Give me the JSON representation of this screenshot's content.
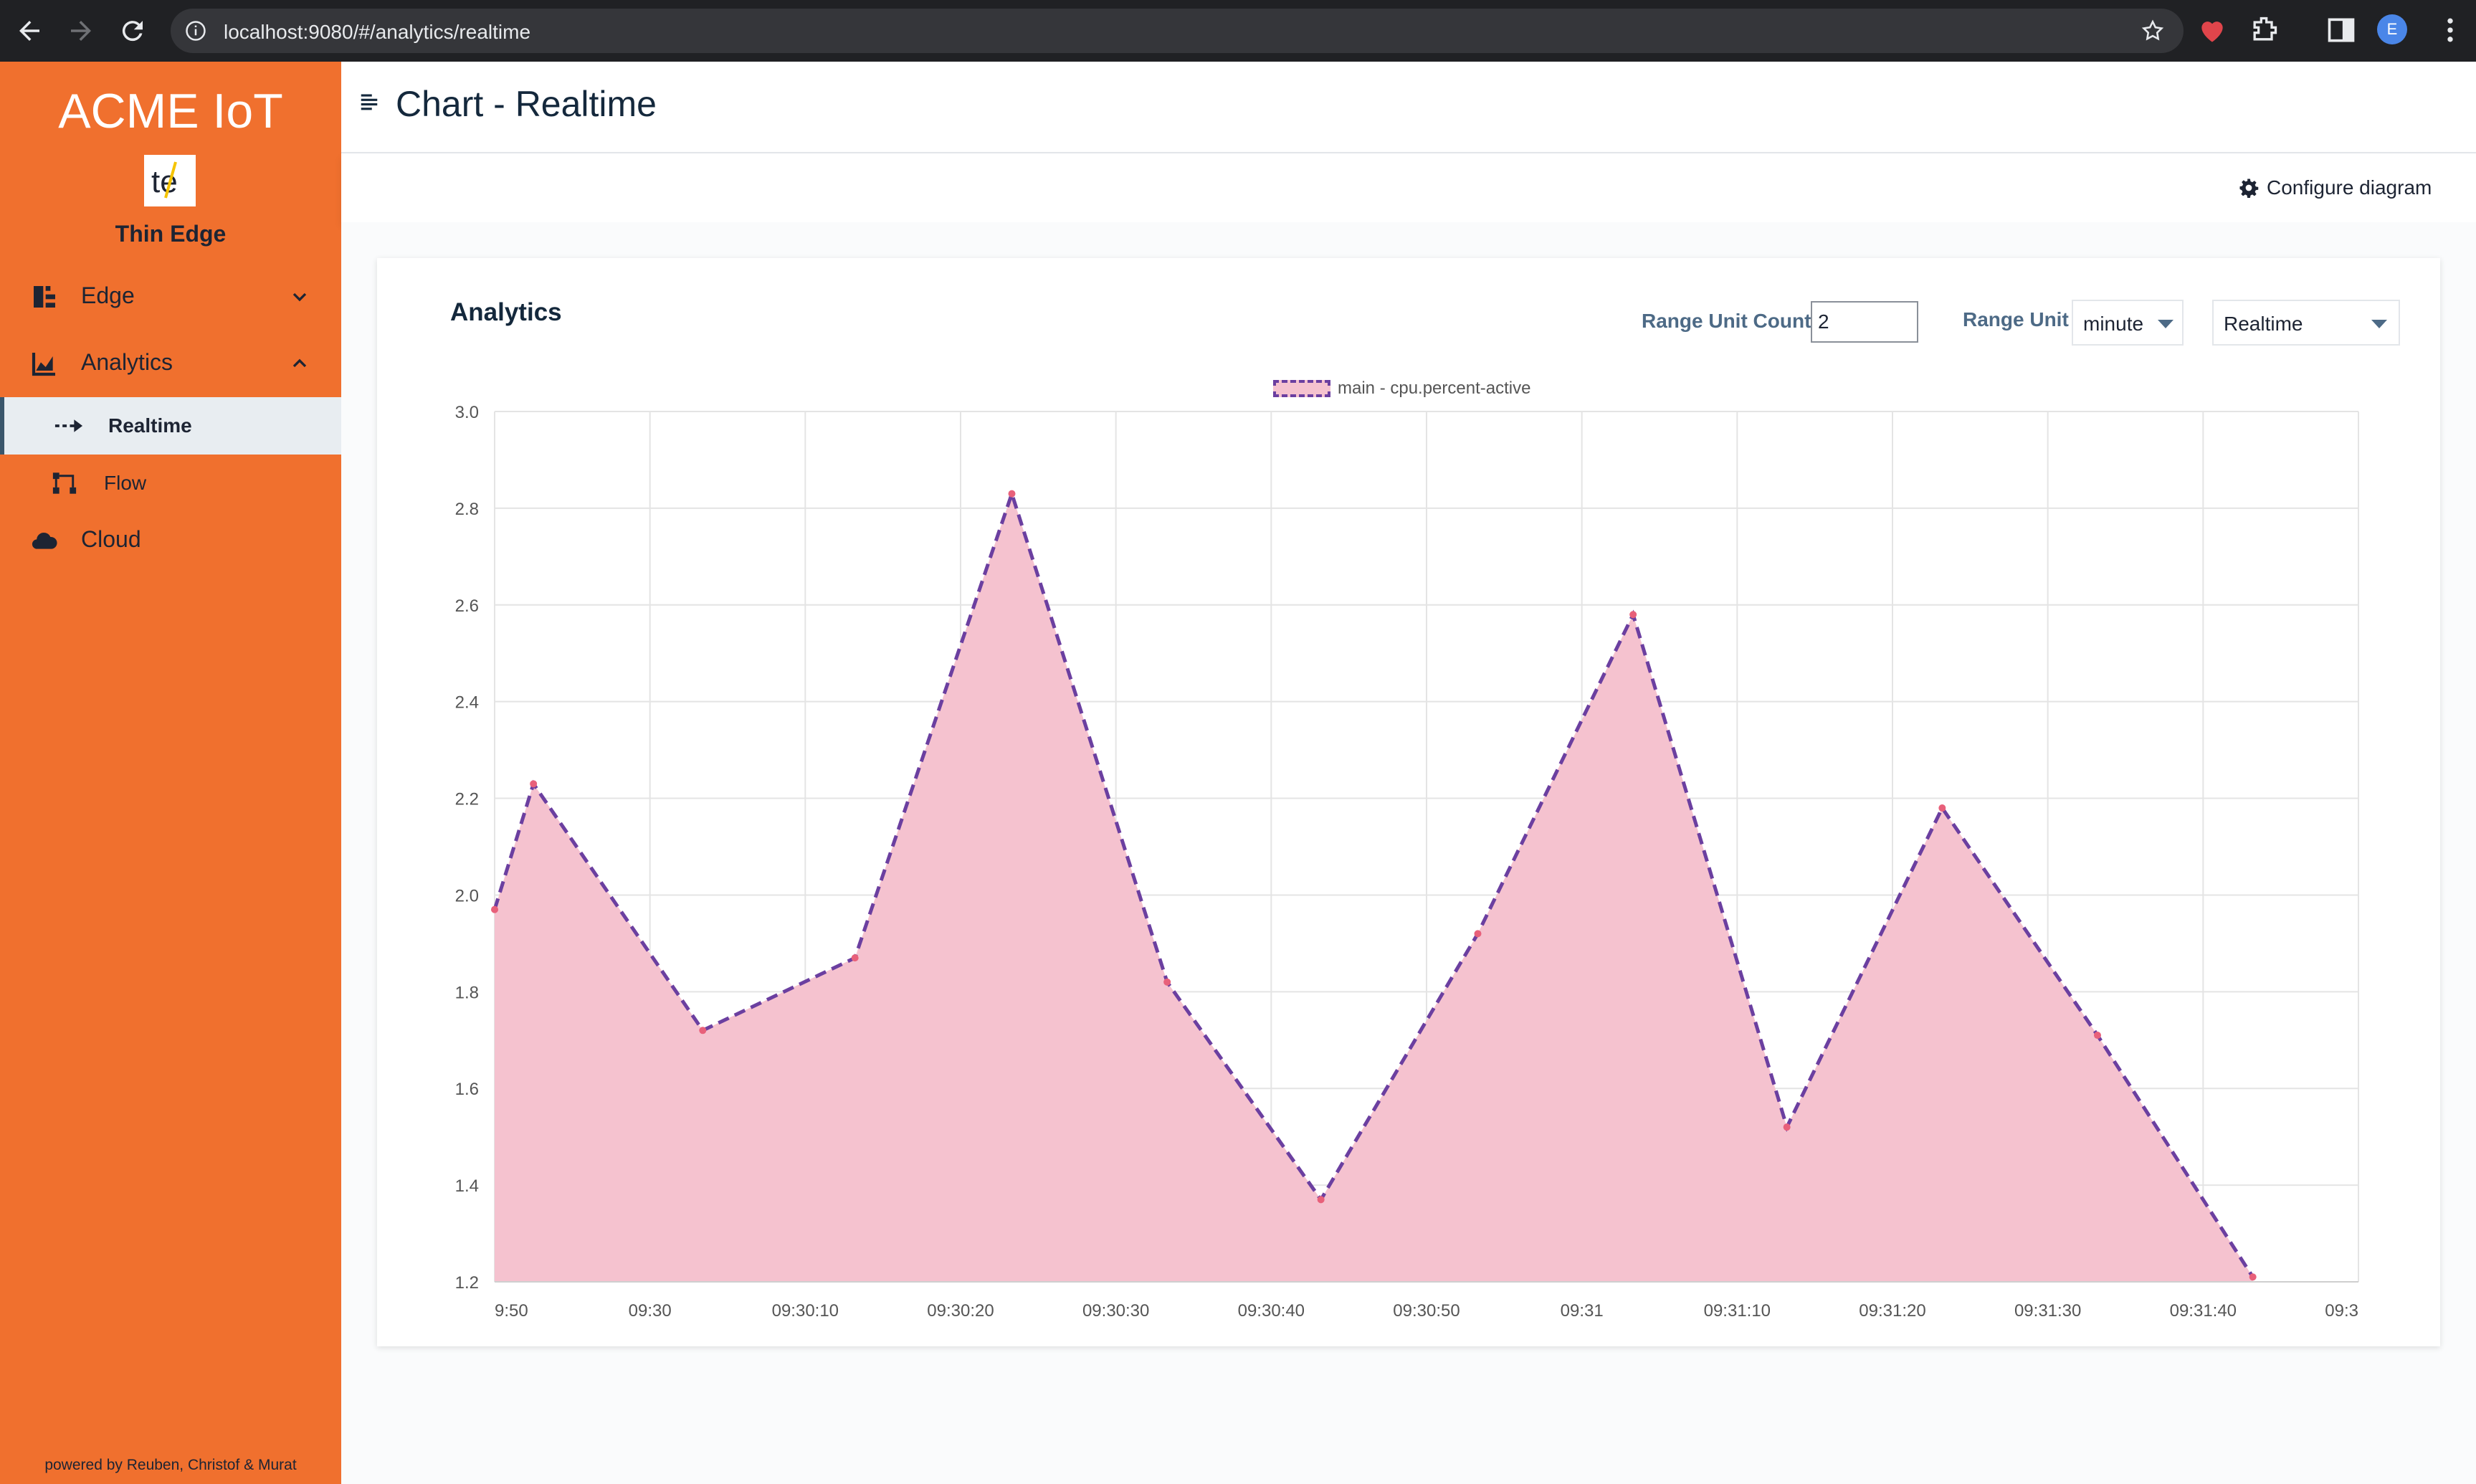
{
  "browser": {
    "url": "localhost:9080/#/analytics/realtime",
    "profile_initial": "E"
  },
  "sidebar": {
    "brand": "ACME IoT",
    "logo_text": "te",
    "brand_sub": "Thin Edge",
    "items": [
      {
        "label": "Edge",
        "icon": "edge-icon",
        "expanded": false
      },
      {
        "label": "Analytics",
        "icon": "chart-area-icon",
        "expanded": true
      },
      {
        "label": "Cloud",
        "icon": "cloud-icon"
      }
    ],
    "sub_items": [
      {
        "label": "Realtime",
        "icon": "dotted-arrow-icon",
        "active": true
      },
      {
        "label": "Flow",
        "icon": "flow-icon",
        "active": false
      }
    ],
    "footer": "powered by Reuben, Christof & Murat"
  },
  "header": {
    "title": "Chart - Realtime",
    "configure_label": "Configure diagram"
  },
  "card": {
    "title": "Analytics",
    "range_count_label": "Range Unit Count",
    "range_count_value": "2",
    "range_unit_label": "Range Unit",
    "range_unit_value": "minute",
    "mode_value": "Realtime"
  },
  "colors": {
    "sidebar": "#f0702e",
    "series_line": "#6b3fa0",
    "series_fill": "#f5c2cf",
    "point": "#e8607a"
  },
  "chart_data": {
    "type": "area",
    "legend": "main - cpu.percent-active",
    "ylim": [
      1.2,
      3.0
    ],
    "yticks": [
      "1.2",
      "1.4",
      "1.6",
      "1.8",
      "2.0",
      "2.2",
      "2.4",
      "2.6",
      "2.8",
      "3.0"
    ],
    "xlim": [
      "09:29:50",
      "09:31:50"
    ],
    "xticks": [
      "9:50",
      "09:30",
      "09:30:10",
      "09:30:20",
      "09:30:30",
      "09:30:40",
      "09:30:50",
      "09:31",
      "09:31:10",
      "09:31:20",
      "09:31:30",
      "09:31:40",
      "09:3"
    ],
    "grid": true,
    "series": [
      {
        "name": "main - cpu.percent-active",
        "x": [
          "09:29:50",
          "09:29:52.5",
          "09:30:03.4",
          "09:30:13.2",
          "09:30:23.3",
          "09:30:33.3",
          "09:30:43.2",
          "09:30:53.3",
          "09:31:03.3",
          "09:31:13.2",
          "09:31:23.2",
          "09:31:33.2",
          "09:31:43.2"
        ],
        "values": [
          1.97,
          2.23,
          1.72,
          1.87,
          2.83,
          1.82,
          1.37,
          1.92,
          2.58,
          1.52,
          2.18,
          1.71,
          1.21
        ]
      }
    ]
  }
}
